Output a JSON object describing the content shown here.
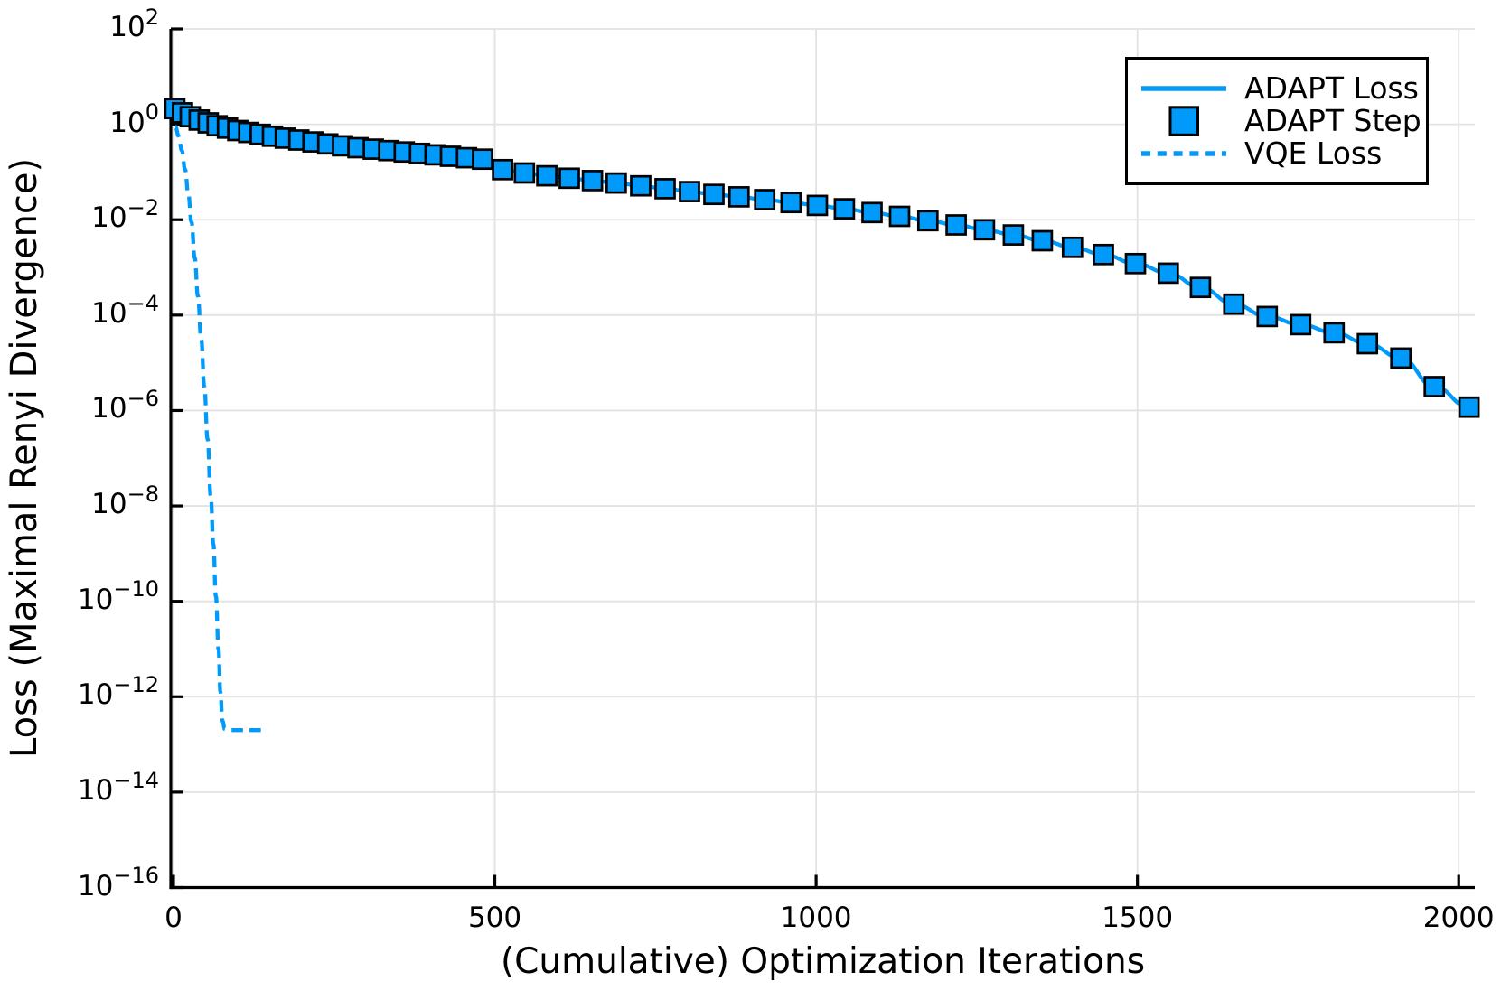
{
  "colors": {
    "series_blue": "#009AFA",
    "marker_edge": "#000000",
    "grid": "#E2E2E2",
    "axis": "#000000",
    "text": "#000000",
    "background": "#FFFFFF"
  },
  "chart_data": {
    "type": "line",
    "title": "",
    "xlabel": "(Cumulative) Optimization Iterations",
    "ylabel": "Loss (Maximal Renyi Divergence)",
    "grid": true,
    "x_axis": {
      "scale": "linear",
      "min": -4.2,
      "max": 2025,
      "ticks": [
        0,
        500,
        1000,
        1500,
        2000
      ]
    },
    "y_axis": {
      "scale": "log10",
      "min_exp": -16,
      "max_exp": 2,
      "tick_exponents": [
        2,
        0,
        -2,
        -4,
        -6,
        -8,
        -10,
        -12,
        -14,
        -16
      ]
    },
    "legend": {
      "position": "top-right",
      "entries": [
        {
          "label": "ADAPT Loss",
          "style": "solid-line"
        },
        {
          "label": "ADAPT Step",
          "style": "square-marker"
        },
        {
          "label": "VQE Loss",
          "style": "dashed-line"
        }
      ]
    },
    "y_values_are": "log10(loss)",
    "series": [
      {
        "name": "ADAPT Loss",
        "style": "solid-line",
        "points": [
          [
            2,
            0.33
          ],
          [
            14,
            0.24
          ],
          [
            26,
            0.16
          ],
          [
            40,
            0.09
          ],
          [
            54,
            0.03
          ],
          [
            68,
            -0.03
          ],
          [
            84,
            -0.08
          ],
          [
            100,
            -0.13
          ],
          [
            117,
            -0.17
          ],
          [
            135,
            -0.21
          ],
          [
            154,
            -0.25
          ],
          [
            174,
            -0.29
          ],
          [
            195,
            -0.33
          ],
          [
            217,
            -0.37
          ],
          [
            240,
            -0.41
          ],
          [
            263,
            -0.45
          ],
          [
            287,
            -0.49
          ],
          [
            311,
            -0.52
          ],
          [
            335,
            -0.55
          ],
          [
            359,
            -0.58
          ],
          [
            383,
            -0.61
          ],
          [
            407,
            -0.64
          ],
          [
            431,
            -0.67
          ],
          [
            456,
            -0.7
          ],
          [
            481,
            -0.73
          ],
          [
            512,
            -0.95
          ],
          [
            546,
            -1.02
          ],
          [
            581,
            -1.08
          ],
          [
            616,
            -1.13
          ],
          [
            652,
            -1.18
          ],
          [
            689,
            -1.23
          ],
          [
            727,
            -1.29
          ],
          [
            765,
            -1.35
          ],
          [
            803,
            -1.41
          ],
          [
            841,
            -1.47
          ],
          [
            880,
            -1.52
          ],
          [
            920,
            -1.58
          ],
          [
            961,
            -1.64
          ],
          [
            1002,
            -1.7
          ],
          [
            1044,
            -1.77
          ],
          [
            1087,
            -1.85
          ],
          [
            1130,
            -1.93
          ],
          [
            1174,
            -2.02
          ],
          [
            1218,
            -2.11
          ],
          [
            1262,
            -2.21
          ],
          [
            1307,
            -2.32
          ],
          [
            1352,
            -2.44
          ],
          [
            1399,
            -2.58
          ],
          [
            1447,
            -2.73
          ],
          [
            1497,
            -2.92
          ],
          [
            1548,
            -3.12
          ],
          [
            1598,
            -3.42
          ],
          [
            1650,
            -3.77
          ],
          [
            1702,
            -4.03
          ],
          [
            1754,
            -4.2
          ],
          [
            1806,
            -4.37
          ],
          [
            1858,
            -4.6
          ],
          [
            1910,
            -4.9
          ],
          [
            1962,
            -5.5
          ],
          [
            2016,
            -5.93
          ]
        ]
      },
      {
        "name": "ADAPT Step",
        "style": "square-marker",
        "points_source": "ADAPT Loss"
      },
      {
        "name": "VQE Loss",
        "style": "dashed-line",
        "points": [
          [
            3,
            -0.05
          ],
          [
            8,
            -0.25
          ],
          [
            13,
            -0.55
          ],
          [
            18,
            -0.95
          ],
          [
            23,
            -1.45
          ],
          [
            28,
            -2.05
          ],
          [
            33,
            -2.8
          ],
          [
            38,
            -3.6
          ],
          [
            43,
            -4.5
          ],
          [
            48,
            -5.5
          ],
          [
            53,
            -6.6
          ],
          [
            58,
            -7.8
          ],
          [
            62,
            -8.8
          ],
          [
            66,
            -9.9
          ],
          [
            70,
            -11.0
          ],
          [
            73,
            -11.9
          ],
          [
            76,
            -12.5
          ],
          [
            80,
            -12.68
          ],
          [
            90,
            -12.7
          ],
          [
            138,
            -12.7
          ]
        ]
      }
    ]
  }
}
